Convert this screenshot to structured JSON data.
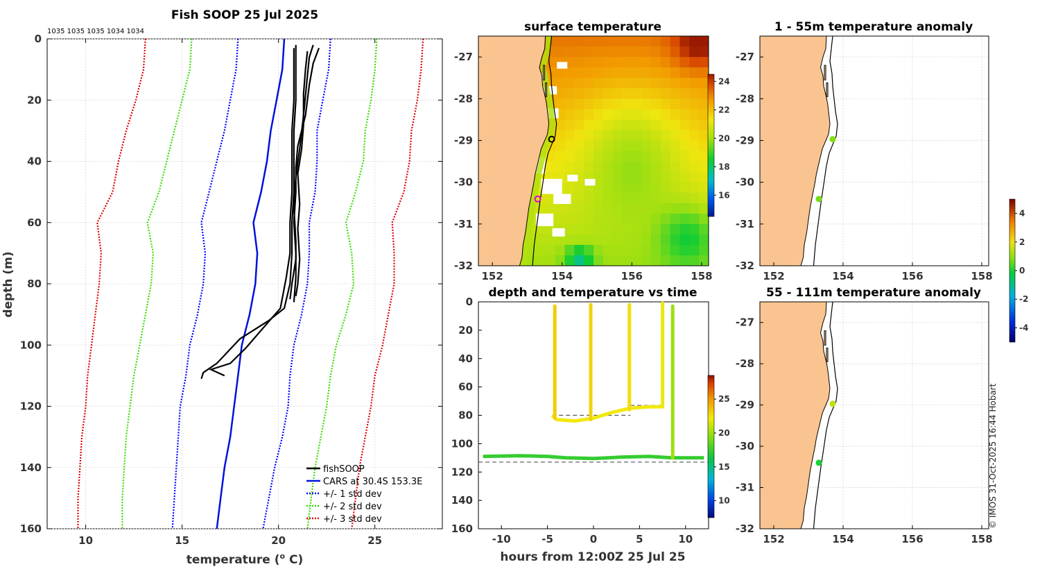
{
  "figure": {
    "credit": "© IMOS 31-Oct-2025 16:44 Hobart",
    "colors": {
      "land": "#f9c48f",
      "cars": "#0011dd",
      "std1": "#0000ff",
      "std2": "#33dd00",
      "std3": "#dd0000",
      "fish": "#000000"
    }
  },
  "chart_data": [
    {
      "id": "profile",
      "type": "line",
      "title": "Fish SOOP 25 Jul 2025",
      "xlabel": "temperature (",
      "xlabel_sup": "o",
      "xlabel_tail": " C)",
      "ylabel": "depth (m)",
      "xlim": [
        8,
        28.5
      ],
      "ylim": [
        0,
        160
      ],
      "xticks": [
        10,
        15,
        20,
        25
      ],
      "yticks": [
        0,
        20,
        40,
        60,
        80,
        100,
        120,
        140,
        160
      ],
      "top_annotation": "1035 1035 1035 1034 1034",
      "depths": [
        0,
        10,
        20,
        30,
        40,
        50,
        60,
        70,
        80,
        90,
        100,
        110,
        120,
        130,
        140,
        150,
        160
      ],
      "cars_mean": [
        20.3,
        20.2,
        19.9,
        19.6,
        19.4,
        19.1,
        18.7,
        18.9,
        18.8,
        18.5,
        18.1,
        17.9,
        17.7,
        17.5,
        17.2,
        17.0,
        16.8
      ],
      "std1": [
        [
          17.9,
          17.8,
          17.5,
          17.2,
          16.8,
          16.4,
          16.0,
          16.2,
          16.1,
          15.8,
          15.4,
          15.2,
          14.9,
          14.8,
          14.7,
          14.6,
          14.5
        ],
        [
          22.7,
          22.6,
          22.3,
          22.0,
          22.0,
          21.9,
          21.6,
          21.6,
          21.5,
          21.2,
          20.8,
          20.6,
          20.5,
          20.2,
          19.8,
          19.5,
          19.2
        ]
      ],
      "std2": [
        [
          15.5,
          15.4,
          15.0,
          14.6,
          14.2,
          13.8,
          13.2,
          13.5,
          13.4,
          13.1,
          12.8,
          12.5,
          12.3,
          12.1,
          12.0,
          11.9,
          11.9
        ]
      ],
      "std2_hi": [
        25.1,
        25.0,
        24.8,
        24.5,
        24.4,
        24.0,
        23.5,
        23.8,
        23.9,
        23.5,
        23.0,
        22.7,
        22.5,
        22.2,
        21.9,
        21.7,
        21.5
      ],
      "std3": [
        [
          13.1,
          13.0,
          12.6,
          12.1,
          11.7,
          11.4,
          10.6,
          10.8,
          10.7,
          10.5,
          10.3,
          10.1,
          10.0,
          9.8,
          9.7,
          9.6,
          9.6
        ],
        [
          27.5,
          27.4,
          27.2,
          26.9,
          26.8,
          26.5,
          25.9,
          26.0,
          26.0,
          25.7,
          25.4,
          25.0,
          24.8,
          24.5,
          24.2,
          24.0,
          23.8
        ]
      ],
      "fishsoop_casts": [
        {
          "t": [
            20.9,
            20.9,
            20.9,
            20.8,
            20.8,
            20.8,
            20.7,
            20.7,
            20.6,
            20.3,
            19.5,
            18.0,
            16.8,
            16.1,
            16.0
          ],
          "d": [
            2,
            10,
            20,
            30,
            40,
            50,
            60,
            70,
            80,
            88,
            92,
            98,
            106,
            109,
            111
          ]
        },
        {
          "t": [
            20.8,
            20.8,
            20.8,
            20.7,
            20.7,
            20.7,
            20.6,
            20.6,
            20.4,
            20.1,
            19.4,
            18.3,
            17.5,
            16.5,
            17.2
          ],
          "d": [
            3,
            10,
            20,
            30,
            40,
            50,
            60,
            70,
            78,
            88,
            93,
            101,
            106,
            108,
            110
          ]
        },
        {
          "t": [
            22.1,
            21.8,
            21.6,
            21.4,
            21.0,
            20.9,
            20.9,
            20.8,
            20.9,
            20.9,
            20.8
          ],
          "d": [
            3,
            8,
            15,
            25,
            35,
            42,
            50,
            60,
            70,
            78,
            86
          ]
        },
        {
          "t": [
            21.8,
            21.6,
            21.5,
            21.3,
            21.1,
            20.9,
            20.8,
            20.9,
            20.9,
            20.7,
            20.6
          ],
          "d": [
            2,
            6,
            12,
            25,
            36,
            45,
            55,
            66,
            72,
            80,
            85
          ]
        },
        {
          "t": [
            21.5,
            21.4,
            21.3,
            21.3,
            21.2,
            21.0,
            21.1,
            21.0,
            21.1,
            21.0,
            20.9
          ],
          "d": [
            4,
            10,
            18,
            28,
            36,
            44,
            54,
            62,
            72,
            80,
            84
          ]
        }
      ],
      "legend": [
        "fishSOOP",
        "CARS at 30.4S 153.3E",
        "+/- 1 std dev",
        "+/- 2 std dev",
        "+/- 3 std dev"
      ]
    },
    {
      "id": "sst",
      "type": "heatmap",
      "title": "surface temperature",
      "xlim": [
        151.6,
        158.2
      ],
      "ylim": [
        -32,
        -26.5
      ],
      "xticks": [
        152,
        154,
        156,
        158
      ],
      "yticks": [
        -27,
        -28,
        -29,
        -30,
        -31,
        -32
      ],
      "colorbar_ticks": [
        16,
        18,
        20,
        22,
        24
      ],
      "colorbar_range": [
        14.5,
        24.5
      ],
      "markers": [
        {
          "lon": 153.7,
          "lat": -28.97,
          "style": "black-circle"
        },
        {
          "lon": 153.3,
          "lat": -30.4,
          "style": "magenta-circle"
        }
      ]
    },
    {
      "id": "timeseries",
      "type": "scatter",
      "title": "depth and temperature vs time",
      "xlabel": "hours from 12:00Z 25 Jul 25",
      "xlim": [
        -12.5,
        12.5
      ],
      "ylim": [
        0,
        160
      ],
      "xticks": [
        -10,
        -5,
        0,
        5,
        10
      ],
      "yticks": [
        0,
        20,
        40,
        60,
        80,
        100,
        120,
        140,
        160
      ],
      "colorbar_ticks": [
        10,
        15,
        20,
        25
      ],
      "colorbar_range": [
        7.5,
        28.5
      ],
      "dashed_refs": [
        {
          "x": [
            -4.5,
            4
          ],
          "depth": 80
        },
        {
          "x": [
            4,
            7.5
          ],
          "depth": 73
        },
        {
          "x": [
            -12.5,
            12.5
          ],
          "depth": 113
        }
      ],
      "bottom_track": {
        "x": [
          -12,
          -8,
          -5,
          -3,
          0,
          3,
          6,
          8.5,
          9.5,
          12
        ],
        "depth": [
          109,
          108.5,
          109,
          110,
          110.5,
          109.5,
          109,
          110,
          110,
          110
        ],
        "temp": 17.3
      },
      "upper_track": {
        "x": [
          -4.5,
          -4,
          -2,
          0,
          2,
          4,
          6,
          7.5
        ],
        "depth": [
          80,
          83,
          84,
          82,
          78,
          75,
          74,
          74
        ],
        "temp": 22.2
      },
      "spikes": [
        {
          "x": -4.2,
          "top": 3,
          "bottom": 82,
          "temp": 23.2
        },
        {
          "x": -0.3,
          "top": 2,
          "bottom": 83,
          "temp": 23.0
        },
        {
          "x": 3.9,
          "top": 2,
          "bottom": 76,
          "temp": 22.6
        },
        {
          "x": 7.5,
          "top": 1,
          "bottom": 74,
          "temp": 22.0
        },
        {
          "x": 8.6,
          "top": 3,
          "bottom": 110,
          "temp": 20.0
        }
      ]
    },
    {
      "id": "anom_shallow",
      "type": "scatter",
      "title": "1 - 55m temperature anomaly",
      "xlim": [
        151.6,
        158.2
      ],
      "ylim": [
        -32,
        -26.5
      ],
      "xticks": [
        152,
        154,
        156,
        158
      ],
      "yticks": [
        -27,
        -28,
        -29,
        -30,
        -31,
        -32
      ],
      "points": [
        {
          "lon": 153.7,
          "lat": -28.97,
          "anomaly": 0.8
        },
        {
          "lon": 153.3,
          "lat": -30.4,
          "anomaly": 0.7
        }
      ]
    },
    {
      "id": "anom_deep",
      "type": "scatter",
      "title": "55 - 111m temperature anomaly",
      "xlim": [
        151.6,
        158.2
      ],
      "ylim": [
        -32,
        -26.5
      ],
      "xticks": [
        152,
        154,
        156,
        158
      ],
      "yticks": [
        -27,
        -28,
        -29,
        -30,
        -31,
        -32
      ],
      "points": [
        {
          "lon": 153.7,
          "lat": -28.97,
          "anomaly": 1.5
        },
        {
          "lon": 153.3,
          "lat": -30.4,
          "anomaly": 0.0
        }
      ]
    },
    {
      "id": "anom_colorbar",
      "type": "colorbar",
      "ticks": [
        -4,
        -2,
        0,
        2,
        4
      ],
      "range": [
        -5,
        5
      ]
    }
  ]
}
